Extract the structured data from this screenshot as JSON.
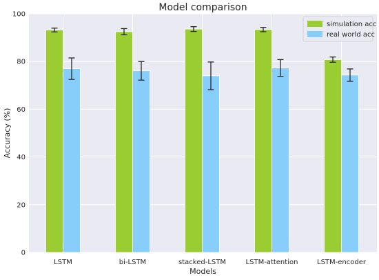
{
  "chart_data": {
    "type": "bar",
    "title": "Model comparison",
    "xlabel": "Models",
    "ylabel": "Accuracy (%)",
    "ylim": [
      0,
      100
    ],
    "yticks": [
      0,
      20,
      40,
      60,
      80,
      100
    ],
    "grid": true,
    "legend_position": "top-right",
    "categories": [
      "LSTM",
      "bi-LSTM",
      "stacked-LSTM",
      "LSTM-attention",
      "LSTM-encoder"
    ],
    "series": [
      {
        "name": "simulation acc",
        "color": "#9acd32",
        "values": [
          93.2,
          92.5,
          93.6,
          93.4,
          80.8
        ],
        "error": [
          0.8,
          1.3,
          1.0,
          0.9,
          1.1
        ]
      },
      {
        "name": "real world acc",
        "color": "#87cefa",
        "values": [
          77.0,
          76.1,
          74.0,
          77.3,
          74.3
        ],
        "error": [
          4.5,
          3.9,
          5.8,
          3.5,
          2.6
        ]
      }
    ]
  }
}
